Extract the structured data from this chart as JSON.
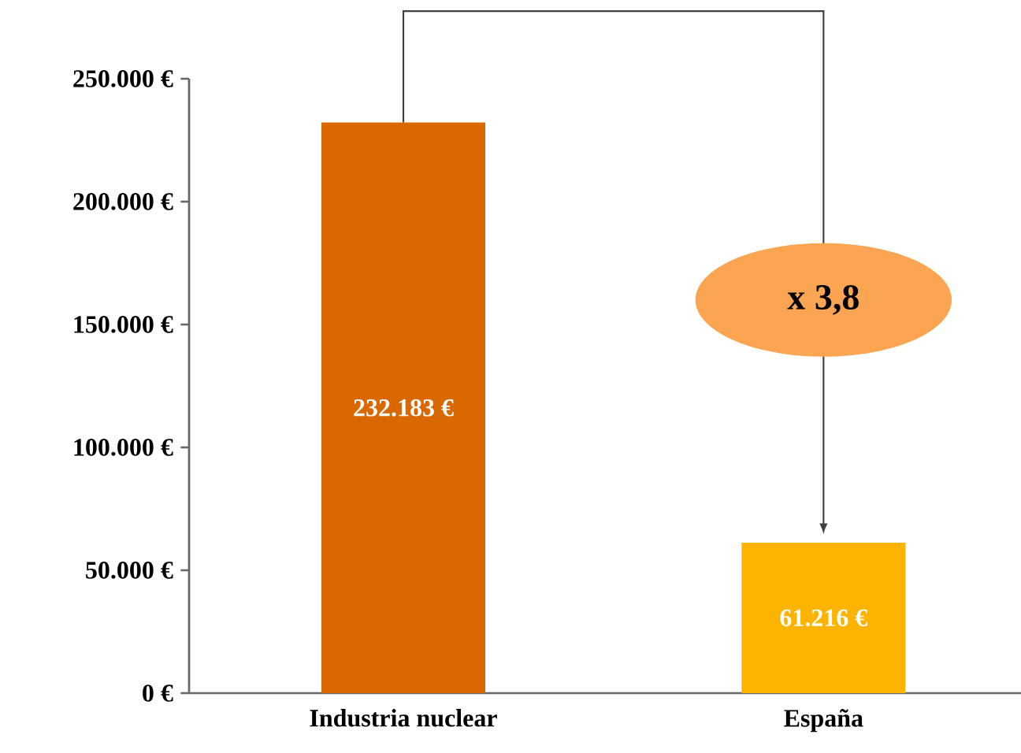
{
  "chart_data": {
    "type": "bar",
    "categories": [
      "Industria nuclear",
      "España"
    ],
    "values": [
      232183,
      61216
    ],
    "colors": [
      "#d96800",
      "#fdb400"
    ],
    "value_labels": [
      "232.183 €",
      "61.216 €"
    ],
    "ylim": [
      0,
      250000
    ],
    "yticks": [
      {
        "value": 0,
        "label": "0 €"
      },
      {
        "value": 50000,
        "label": "50.000 €"
      },
      {
        "value": 100000,
        "label": "100.000 €"
      },
      {
        "value": 150000,
        "label": "150.000 €"
      },
      {
        "value": 200000,
        "label": "200.000 €"
      },
      {
        "value": 250000,
        "label": "250.000 €"
      }
    ],
    "grid": false,
    "annotations": [
      "x 3,8"
    ]
  }
}
